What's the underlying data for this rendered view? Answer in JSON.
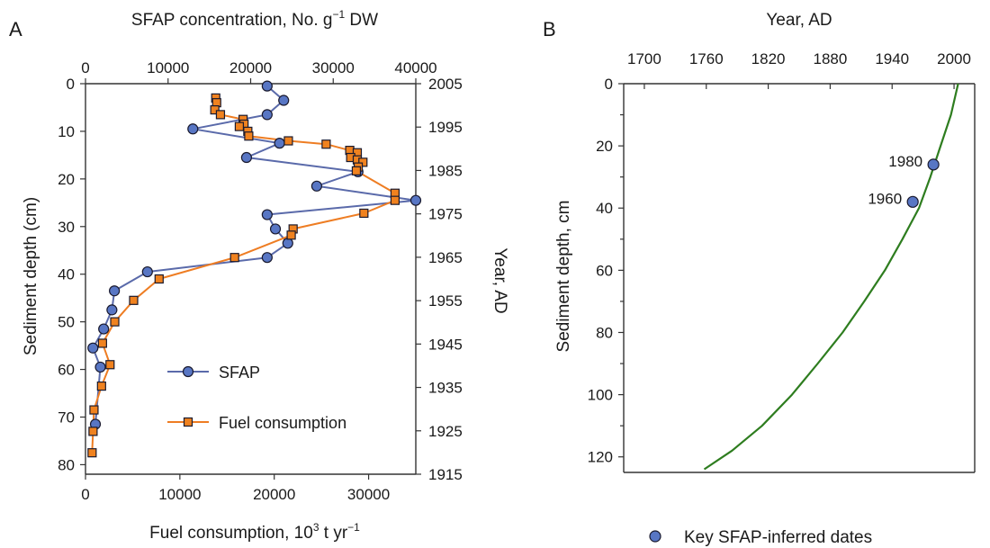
{
  "colors": {
    "sfap": "#5a6aaa",
    "sfap_marker": "#5876c4",
    "fuel": "#ee7d23",
    "fuel_marker": "#f0821f",
    "curve": "#2e7d1f",
    "marker_edge": "#1a1a2e",
    "axis": "#333333"
  },
  "chart_data": [
    {
      "panel_label": "A",
      "type": "line",
      "title": "",
      "x_top": {
        "label": "SFAP concentration, No. g",
        "label_sup": "−1",
        "label_suffix": " DW",
        "ticks": [
          0,
          10000,
          20000,
          30000,
          40000
        ],
        "range": [
          0,
          40000
        ]
      },
      "x_bottom": {
        "label": "Fuel consumption, 10",
        "label_sup": "3",
        "label_suffix": " t yr",
        "label_sup2": "−1",
        "ticks": [
          0,
          10000,
          20000,
          30000
        ],
        "range": [
          0,
          35000
        ]
      },
      "y_left": {
        "label": "Sediment depth (cm)",
        "ticks": [
          0,
          10,
          20,
          30,
          40,
          50,
          60,
          70,
          80
        ],
        "range": [
          0,
          82
        ],
        "inverted": true
      },
      "y_right": {
        "label": "Year, AD",
        "ticks": [
          "2005",
          "1995",
          "1985",
          "1975",
          "1965",
          "1955",
          "1945",
          "1935",
          "1925",
          "1915"
        ]
      },
      "legend": {
        "placement": "lower-center",
        "entries": [
          "SFAP",
          "Fuel consumption"
        ]
      },
      "series": [
        {
          "name": "SFAP",
          "axis": "top",
          "points": [
            [
              22000,
              0.5
            ],
            [
              24000,
              3.5
            ],
            [
              22000,
              6.5
            ],
            [
              13000,
              9.5
            ],
            [
              23500,
              12.5
            ],
            [
              19500,
              15.5
            ],
            [
              33000,
              18.5
            ],
            [
              28000,
              21.5
            ],
            [
              40000,
              24.5
            ],
            [
              22000,
              27.5
            ],
            [
              23000,
              30.5
            ],
            [
              24500,
              33.5
            ],
            [
              22000,
              36.5
            ],
            [
              7500,
              39.5
            ],
            [
              3500,
              43.5
            ],
            [
              3200,
              47.5
            ],
            [
              2200,
              51.5
            ],
            [
              900,
              55.5
            ],
            [
              1800,
              59.5
            ],
            [
              1200,
              71.5
            ]
          ]
        },
        {
          "name": "Fuel consumption",
          "axis": "bottom",
          "points": [
            [
              13800,
              3
            ],
            [
              13900,
              4
            ],
            [
              13700,
              5.5
            ],
            [
              14300,
              6.5
            ],
            [
              16700,
              7.5
            ],
            [
              16800,
              8.5
            ],
            [
              16300,
              9
            ],
            [
              17200,
              10
            ],
            [
              17300,
              11
            ],
            [
              21500,
              12
            ],
            [
              25500,
              12.7
            ],
            [
              28000,
              14
            ],
            [
              28800,
              14.5
            ],
            [
              28100,
              15.5
            ],
            [
              28800,
              16
            ],
            [
              29400,
              16.5
            ],
            [
              28900,
              17.5
            ],
            [
              28700,
              18.3
            ],
            [
              32800,
              23
            ],
            [
              32800,
              24.5
            ],
            [
              29500,
              27.2
            ],
            [
              22000,
              30.5
            ],
            [
              21800,
              31.8
            ],
            [
              15800,
              36.5
            ],
            [
              7800,
              41
            ],
            [
              5100,
              45.5
            ],
            [
              3100,
              50
            ],
            [
              1800,
              54.5
            ],
            [
              2600,
              59
            ],
            [
              1700,
              63.5
            ],
            [
              900,
              68.5
            ],
            [
              800,
              73
            ],
            [
              700,
              77.5
            ]
          ]
        }
      ]
    },
    {
      "panel_label": "B",
      "type": "line",
      "title": "",
      "x_top": {
        "label": "Year, AD",
        "ticks": [
          1700,
          1760,
          1820,
          1880,
          1940,
          2000
        ],
        "range": [
          1680,
          2020
        ]
      },
      "y_left": {
        "label": "Sediment depth, cm",
        "ticks": [
          0,
          20,
          40,
          60,
          80,
          100,
          120
        ],
        "range": [
          0,
          125
        ],
        "inverted": true
      },
      "legend": {
        "placement": "bottom-center",
        "entries": [
          "Key SFAP-inferred dates"
        ]
      },
      "series": [
        {
          "name": "Depth-age model",
          "points": [
            [
              2004,
              0
            ],
            [
              1997,
              10
            ],
            [
              1987,
              20
            ],
            [
              1977,
              30
            ],
            [
              1966,
              40
            ],
            [
              1950,
              50
            ],
            [
              1933,
              60
            ],
            [
              1913,
              70
            ],
            [
              1892,
              80
            ],
            [
              1868,
              90
            ],
            [
              1843,
              100
            ],
            [
              1814,
              110
            ],
            [
              1785,
              118
            ],
            [
              1758,
              124
            ]
          ]
        },
        {
          "name": "Key SFAP-inferred dates",
          "points": [
            [
              1980,
              26
            ],
            [
              1960,
              38
            ]
          ],
          "labels": [
            "1980",
            "1960"
          ]
        }
      ]
    }
  ]
}
